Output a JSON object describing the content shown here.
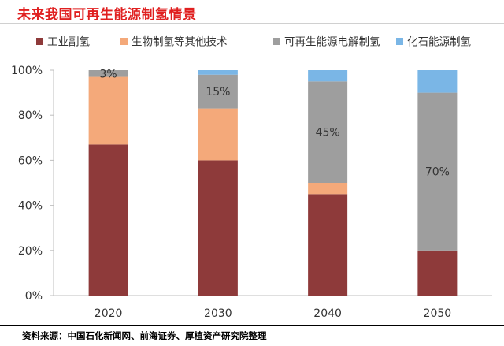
{
  "header": {
    "title": "未来我国可再生能源制氢情景"
  },
  "footer": {
    "source": "资料来源：中国石化新闻网、前海证券、厚植资产研究院整理"
  },
  "colors": {
    "industrial": "#8e3a3a",
    "bio": "#f4a97a",
    "renewable": "#9e9e9e",
    "fossil": "#7ab6e6",
    "axis": "#bfbfbf",
    "text": "#333333"
  },
  "chart_data": {
    "type": "bar",
    "stacked": true,
    "title": "未来我国可再生能源制氢情景",
    "xlabel": "",
    "ylabel": "",
    "ylim": [
      0,
      100
    ],
    "yticks": [
      0,
      20,
      40,
      60,
      80,
      100
    ],
    "ytick_labels": [
      "0%",
      "20%",
      "40%",
      "60%",
      "80%",
      "100%"
    ],
    "categories": [
      "2020",
      "2030",
      "2040",
      "2050"
    ],
    "legend_position": "top",
    "series": [
      {
        "key": "industrial",
        "name": "工业副氢",
        "values": [
          67,
          60,
          45,
          20
        ]
      },
      {
        "key": "bio",
        "name": "生物制氢等其他技术",
        "values": [
          30,
          23,
          5,
          0
        ]
      },
      {
        "key": "renewable",
        "name": "可再生能源电解制氢",
        "values": [
          3,
          15,
          45,
          70
        ]
      },
      {
        "key": "fossil",
        "name": "化石能源制氢",
        "values": [
          0,
          2,
          5,
          10
        ]
      }
    ],
    "annotations": [
      {
        "category": "2020",
        "series": "renewable",
        "text": "3%"
      },
      {
        "category": "2030",
        "series": "renewable",
        "text": "15%"
      },
      {
        "category": "2040",
        "series": "renewable",
        "text": "45%"
      },
      {
        "category": "2050",
        "series": "renewable",
        "text": "70%"
      }
    ]
  }
}
